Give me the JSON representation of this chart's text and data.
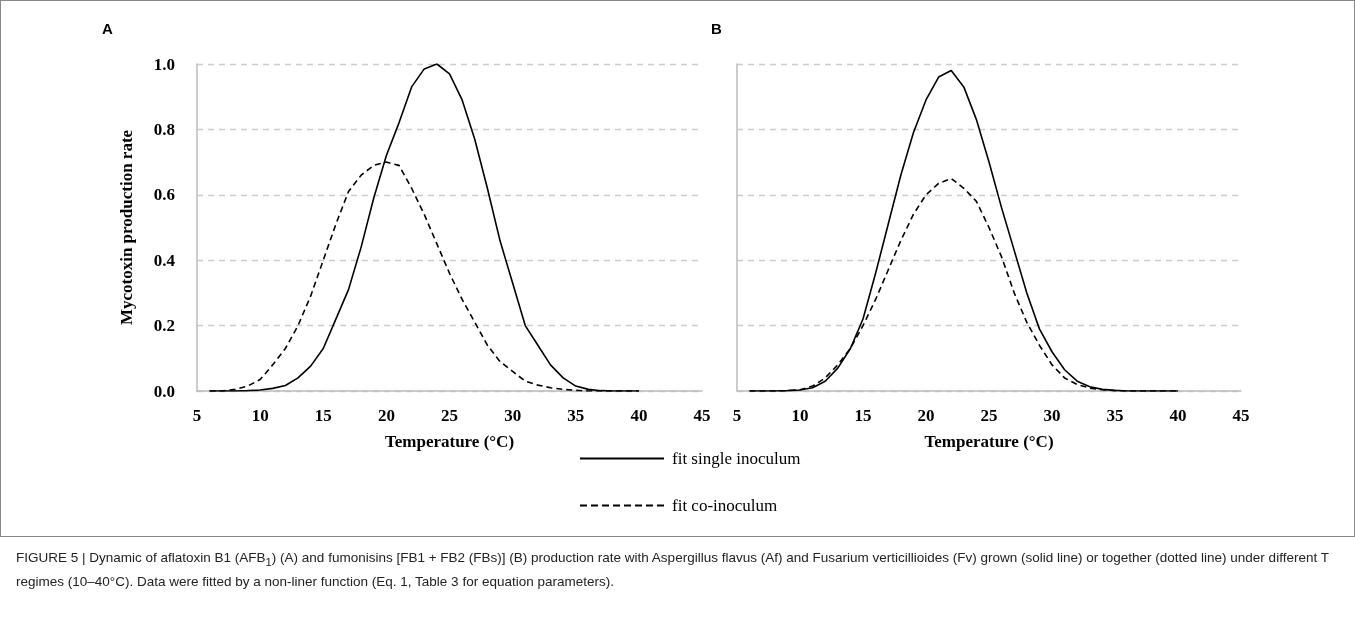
{
  "chart_data": [
    {
      "type": "line",
      "title": "A",
      "xlabel": "Temperature (°C)",
      "ylabel": "Mycotoxin production rate",
      "x": [
        6,
        7,
        8,
        9,
        10,
        11,
        12,
        13,
        14,
        15,
        16,
        17,
        18,
        19,
        20,
        21,
        22,
        23,
        24,
        25,
        26,
        27,
        28,
        29,
        30,
        31,
        32,
        33,
        34,
        35,
        36,
        37,
        38,
        39,
        40
      ],
      "series": [
        {
          "color": "#000000",
          "line_style": "solid",
          "values": [
            0,
            0,
            0,
            0.001,
            0.003,
            0.008,
            0.017,
            0.04,
            0.076,
            0.13,
            0.22,
            0.31,
            0.44,
            0.59,
            0.72,
            0.82,
            0.93,
            0.985,
            1.0,
            0.97,
            0.89,
            0.77,
            0.62,
            0.46,
            0.33,
            0.2,
            0.14,
            0.08,
            0.04,
            0.015,
            0.005,
            0.001,
            0,
            0,
            0
          ]
        },
        {
          "color": "#000000",
          "line_style": "dashed",
          "values": [
            0,
            0,
            0.005,
            0.015,
            0.035,
            0.08,
            0.13,
            0.2,
            0.29,
            0.4,
            0.51,
            0.61,
            0.66,
            0.69,
            0.7,
            0.69,
            0.62,
            0.54,
            0.45,
            0.36,
            0.28,
            0.21,
            0.14,
            0.09,
            0.06,
            0.03,
            0.018,
            0.01,
            0.005,
            0.002,
            0,
            0,
            0,
            0,
            0
          ]
        }
      ],
      "xlim": [
        5,
        45
      ],
      "xticks": [
        5,
        10,
        15,
        20,
        25,
        30,
        35,
        40,
        45
      ],
      "ylim": [
        0,
        1
      ],
      "yticks": [
        {
          "value": 0,
          "label": "0.0"
        },
        0.2,
        0.4,
        0.6,
        0.8,
        {
          "value": 1,
          "label": "1.0"
        }
      ],
      "grid": "y",
      "marker": "none"
    },
    {
      "type": "line",
      "title": "B",
      "xlabel": "Temperature (°C)",
      "x": [
        6,
        7,
        8,
        9,
        10,
        11,
        12,
        13,
        14,
        15,
        16,
        17,
        18,
        19,
        20,
        21,
        22,
        23,
        24,
        25,
        26,
        27,
        28,
        29,
        30,
        31,
        32,
        33,
        34,
        35,
        36,
        37,
        38,
        39,
        40
      ],
      "series": [
        {
          "name": "fit single inoculum",
          "color": "#000000",
          "line_style": "solid",
          "values": [
            0,
            0,
            0,
            0.001,
            0.003,
            0.01,
            0.03,
            0.07,
            0.13,
            0.22,
            0.36,
            0.51,
            0.66,
            0.79,
            0.89,
            0.96,
            0.98,
            0.93,
            0.83,
            0.7,
            0.56,
            0.43,
            0.3,
            0.19,
            0.12,
            0.065,
            0.03,
            0.013,
            0.005,
            0.002,
            0,
            0,
            0,
            0,
            0
          ]
        },
        {
          "name": "fit co-inoculum",
          "color": "#000000",
          "line_style": "dashed",
          "values": [
            0,
            0,
            0,
            0.001,
            0.004,
            0.015,
            0.04,
            0.08,
            0.13,
            0.2,
            0.28,
            0.37,
            0.46,
            0.54,
            0.6,
            0.635,
            0.65,
            0.62,
            0.58,
            0.5,
            0.41,
            0.3,
            0.21,
            0.14,
            0.08,
            0.04,
            0.02,
            0.009,
            0.004,
            0.001,
            0,
            0,
            0,
            0,
            0
          ]
        }
      ],
      "xlim": [
        5,
        45
      ],
      "xticks": [
        5,
        10,
        15,
        20,
        25,
        30,
        35,
        40,
        45
      ],
      "ylim": [
        0,
        1
      ],
      "yticks": [
        0,
        0.2,
        0.4,
        0.6,
        0.8,
        1
      ],
      "tick_labels": "x",
      "grid": "y",
      "marker": "none",
      "legend": "bottom",
      "annotations": [
        "FIGURE 5 | Dynamic of aflatoxin B1 (AFB$_{1}$) (A) and fumonisins [FB1 + FB2 (FBs)] (B) production rate with Aspergillus flavus (Af) and Fusarium verticillioides (Fv) grown (solid line) or together (dotted line) under different T regimes (10–40°C). Data were fitted by a non-liner function (Eq. 1, Table 3 for equation parameters)."
      ]
    }
  ]
}
